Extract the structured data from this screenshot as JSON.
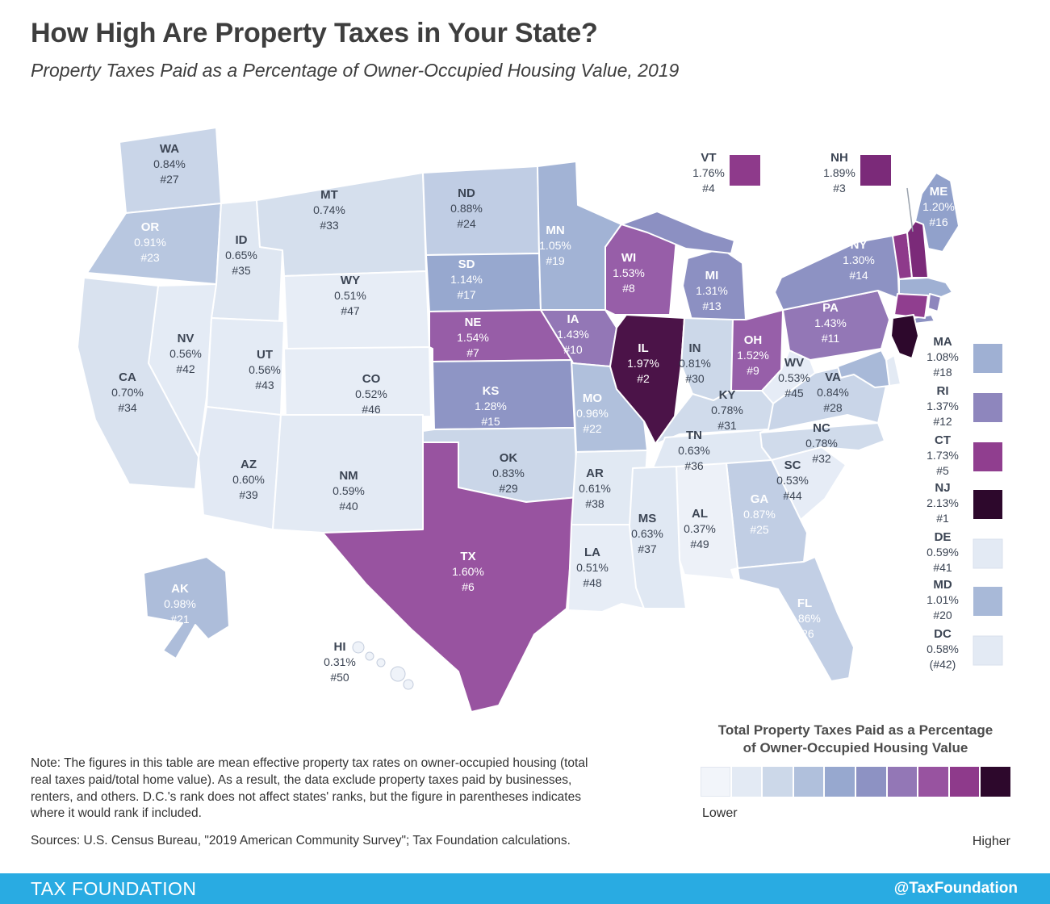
{
  "header": {
    "title": "How High Are Property Taxes in Your State?",
    "subtitle": "Property Taxes Paid as a Percentage of Owner-Occupied Housing Value, 2019"
  },
  "chart_data": {
    "type": "choropleth_map",
    "title": "How High Are Property Taxes in Your State?",
    "subtitle": "Property Taxes Paid as a Percentage of Owner-Occupied Housing Value, 2019",
    "year": 2019,
    "value_label": "Property taxes paid as a percentage of owner-occupied housing value",
    "states": [
      {
        "abbr": "AK",
        "rate": "0.98%",
        "rank": "#21",
        "value": 0.98,
        "rank_num": 21,
        "fill": "#adbdda",
        "label": "light"
      },
      {
        "abbr": "AL",
        "rate": "0.37%",
        "rank": "#49",
        "value": 0.37,
        "rank_num": 49,
        "fill": "#edf1f8",
        "label": "dark"
      },
      {
        "abbr": "AR",
        "rate": "0.61%",
        "rank": "#38",
        "value": 0.61,
        "rank_num": 38,
        "fill": "#e1e9f3",
        "label": "dark"
      },
      {
        "abbr": "AZ",
        "rate": "0.60%",
        "rank": "#39",
        "value": 0.6,
        "rank_num": 39,
        "fill": "#e2e9f4",
        "label": "dark"
      },
      {
        "abbr": "CA",
        "rate": "0.70%",
        "rank": "#34",
        "value": 0.7,
        "rank_num": 34,
        "fill": "#d9e2ef",
        "label": "dark"
      },
      {
        "abbr": "CO",
        "rate": "0.52%",
        "rank": "#46",
        "value": 0.52,
        "rank_num": 46,
        "fill": "#e7edf6",
        "label": "dark"
      },
      {
        "abbr": "CT",
        "rate": "1.73%",
        "rank": "#5",
        "value": 1.73,
        "rank_num": 5,
        "fill": "#903e8f",
        "label": "dark"
      },
      {
        "abbr": "DC",
        "rate": "0.58%",
        "rank": "(#42)",
        "value": 0.58,
        "rank_num": 42,
        "fill": "#e3eaf4",
        "label": "dark"
      },
      {
        "abbr": "DE",
        "rate": "0.59%",
        "rank": "#41",
        "value": 0.59,
        "rank_num": 41,
        "fill": "#e3eaf4",
        "label": "dark"
      },
      {
        "abbr": "FL",
        "rate": "0.86%",
        "rank": "#26",
        "value": 0.86,
        "rank_num": 26,
        "fill": "#c2cfe5",
        "label": "light"
      },
      {
        "abbr": "GA",
        "rate": "0.87%",
        "rank": "#25",
        "value": 0.87,
        "rank_num": 25,
        "fill": "#c1cee4",
        "label": "light"
      },
      {
        "abbr": "HI",
        "rate": "0.31%",
        "rank": "#50",
        "value": 0.31,
        "rank_num": 50,
        "fill": "#eff3f9",
        "label": "dark"
      },
      {
        "abbr": "IA",
        "rate": "1.43%",
        "rank": "#10",
        "value": 1.43,
        "rank_num": 10,
        "fill": "#9377b6",
        "label": "light"
      },
      {
        "abbr": "ID",
        "rate": "0.65%",
        "rank": "#35",
        "value": 0.65,
        "rank_num": 35,
        "fill": "#dfe7f2",
        "label": "dark"
      },
      {
        "abbr": "IL",
        "rate": "1.97%",
        "rank": "#2",
        "value": 1.97,
        "rank_num": 2,
        "fill": "#4b1348",
        "label": "light"
      },
      {
        "abbr": "IN",
        "rate": "0.81%",
        "rank": "#30",
        "value": 0.81,
        "rank_num": 30,
        "fill": "#ccd8e9",
        "label": "dark"
      },
      {
        "abbr": "KS",
        "rate": "1.28%",
        "rank": "#15",
        "value": 1.28,
        "rank_num": 15,
        "fill": "#8e95c5",
        "label": "light"
      },
      {
        "abbr": "KY",
        "rate": "0.78%",
        "rank": "#31",
        "value": 0.78,
        "rank_num": 31,
        "fill": "#d0dbeb",
        "label": "dark"
      },
      {
        "abbr": "LA",
        "rate": "0.51%",
        "rank": "#48",
        "value": 0.51,
        "rank_num": 48,
        "fill": "#e7edf6",
        "label": "dark"
      },
      {
        "abbr": "MA",
        "rate": "1.08%",
        "rank": "#18",
        "value": 1.08,
        "rank_num": 18,
        "fill": "#9fb0d3",
        "label": "dark"
      },
      {
        "abbr": "MD",
        "rate": "1.01%",
        "rank": "#20",
        "value": 1.01,
        "rank_num": 20,
        "fill": "#a8b9d8",
        "label": "dark"
      },
      {
        "abbr": "ME",
        "rate": "1.20%",
        "rank": "#16",
        "value": 1.2,
        "rank_num": 16,
        "fill": "#91a1cb",
        "label": "light"
      },
      {
        "abbr": "MI",
        "rate": "1.31%",
        "rank": "#13",
        "value": 1.31,
        "rank_num": 13,
        "fill": "#8c90c2",
        "label": "light"
      },
      {
        "abbr": "MN",
        "rate": "1.05%",
        "rank": "#19",
        "value": 1.05,
        "rank_num": 19,
        "fill": "#a2b3d5",
        "label": "light"
      },
      {
        "abbr": "MO",
        "rate": "0.96%",
        "rank": "#22",
        "value": 0.96,
        "rank_num": 22,
        "fill": "#b0c0dc",
        "label": "light"
      },
      {
        "abbr": "MS",
        "rate": "0.63%",
        "rank": "#37",
        "value": 0.63,
        "rank_num": 37,
        "fill": "#e0e8f3",
        "label": "dark"
      },
      {
        "abbr": "MT",
        "rate": "0.74%",
        "rank": "#33",
        "value": 0.74,
        "rank_num": 33,
        "fill": "#d5dfed",
        "label": "dark"
      },
      {
        "abbr": "NC",
        "rate": "0.78%",
        "rank": "#32",
        "value": 0.78,
        "rank_num": 32,
        "fill": "#d0dbeb",
        "label": "dark"
      },
      {
        "abbr": "ND",
        "rate": "0.88%",
        "rank": "#24",
        "value": 0.88,
        "rank_num": 24,
        "fill": "#c0cde4",
        "label": "dark"
      },
      {
        "abbr": "NE",
        "rate": "1.54%",
        "rank": "#7",
        "value": 1.54,
        "rank_num": 7,
        "fill": "#975da7",
        "label": "light"
      },
      {
        "abbr": "NH",
        "rate": "1.89%",
        "rank": "#3",
        "value": 1.89,
        "rank_num": 3,
        "fill": "#7b2a79",
        "label": "dark"
      },
      {
        "abbr": "NJ",
        "rate": "2.13%",
        "rank": "#1",
        "value": 2.13,
        "rank_num": 1,
        "fill": "#2d082c",
        "label": "dark"
      },
      {
        "abbr": "NM",
        "rate": "0.59%",
        "rank": "#40",
        "value": 0.59,
        "rank_num": 40,
        "fill": "#e3eaf4",
        "label": "dark"
      },
      {
        "abbr": "NV",
        "rate": "0.56%",
        "rank": "#42",
        "value": 0.56,
        "rank_num": 42,
        "fill": "#e4ebf5",
        "label": "dark"
      },
      {
        "abbr": "NY",
        "rate": "1.30%",
        "rank": "#14",
        "value": 1.3,
        "rank_num": 14,
        "fill": "#8d92c3",
        "label": "light"
      },
      {
        "abbr": "OH",
        "rate": "1.52%",
        "rank": "#9",
        "value": 1.52,
        "rank_num": 9,
        "fill": "#975fa9",
        "label": "light"
      },
      {
        "abbr": "OK",
        "rate": "0.83%",
        "rank": "#29",
        "value": 0.83,
        "rank_num": 29,
        "fill": "#cad6e8",
        "label": "dark"
      },
      {
        "abbr": "OR",
        "rate": "0.91%",
        "rank": "#23",
        "value": 0.91,
        "rank_num": 23,
        "fill": "#b8c7e0",
        "label": "light"
      },
      {
        "abbr": "PA",
        "rate": "1.43%",
        "rank": "#11",
        "value": 1.43,
        "rank_num": 11,
        "fill": "#9377b6",
        "label": "light"
      },
      {
        "abbr": "RI",
        "rate": "1.37%",
        "rank": "#12",
        "value": 1.37,
        "rank_num": 12,
        "fill": "#8e86bd",
        "label": "dark"
      },
      {
        "abbr": "SC",
        "rate": "0.53%",
        "rank": "#44",
        "value": 0.53,
        "rank_num": 44,
        "fill": "#e6ecf6",
        "label": "dark"
      },
      {
        "abbr": "SD",
        "rate": "1.14%",
        "rank": "#17",
        "value": 1.14,
        "rank_num": 17,
        "fill": "#97a8cf",
        "label": "light"
      },
      {
        "abbr": "TN",
        "rate": "0.63%",
        "rank": "#36",
        "value": 0.63,
        "rank_num": 36,
        "fill": "#e0e8f3",
        "label": "dark"
      },
      {
        "abbr": "TX",
        "rate": "1.60%",
        "rank": "#6",
        "value": 1.6,
        "rank_num": 6,
        "fill": "#9853a0",
        "label": "light"
      },
      {
        "abbr": "UT",
        "rate": "0.56%",
        "rank": "#43",
        "value": 0.56,
        "rank_num": 43,
        "fill": "#e4ebf5",
        "label": "dark"
      },
      {
        "abbr": "VA",
        "rate": "0.84%",
        "rank": "#28",
        "value": 0.84,
        "rank_num": 28,
        "fill": "#c9d5e8",
        "label": "dark"
      },
      {
        "abbr": "VT",
        "rate": "1.76%",
        "rank": "#4",
        "value": 1.76,
        "rank_num": 4,
        "fill": "#8e3a8b",
        "label": "dark"
      },
      {
        "abbr": "WA",
        "rate": "0.84%",
        "rank": "#27",
        "value": 0.84,
        "rank_num": 27,
        "fill": "#c9d5e8",
        "label": "dark"
      },
      {
        "abbr": "WI",
        "rate": "1.53%",
        "rank": "#8",
        "value": 1.53,
        "rank_num": 8,
        "fill": "#975ea8",
        "label": "light"
      },
      {
        "abbr": "WV",
        "rate": "0.53%",
        "rank": "#45",
        "value": 0.53,
        "rank_num": 45,
        "fill": "#e6ecf6",
        "label": "dark"
      },
      {
        "abbr": "WY",
        "rate": "0.51%",
        "rank": "#47",
        "value": 0.51,
        "rank_num": 47,
        "fill": "#e7edf6",
        "label": "dark"
      }
    ]
  },
  "legend": {
    "title_line1": "Total Property Taxes Paid as a Percentage",
    "title_line2": "of Owner-Occupied Housing Value",
    "lower": "Lower",
    "higher": "Higher",
    "colors": [
      "#f2f5fa",
      "#e3eaf4",
      "#ccd8e9",
      "#b0c0dc",
      "#97a8cf",
      "#8d92c3",
      "#9377b6",
      "#9853a0",
      "#8e3a8b",
      "#2d082c"
    ]
  },
  "notes": {
    "note": "Note: The figures in this table are mean effective property tax rates on owner-occupied housing (total real taxes paid/total home value). As a result, the data exclude property taxes paid by businesses, renters, and others. D.C.'s rank does not affect states' ranks, but the figure in parentheses indicates where it would rank if included.",
    "sources": "Sources: U.S. Census Bureau, \"2019 American Community Survey\"; Tax Foundation calculations."
  },
  "footer": {
    "brand": "TAX FOUNDATION",
    "handle": "@TaxFoundation",
    "bar_color": "#29abe2"
  }
}
